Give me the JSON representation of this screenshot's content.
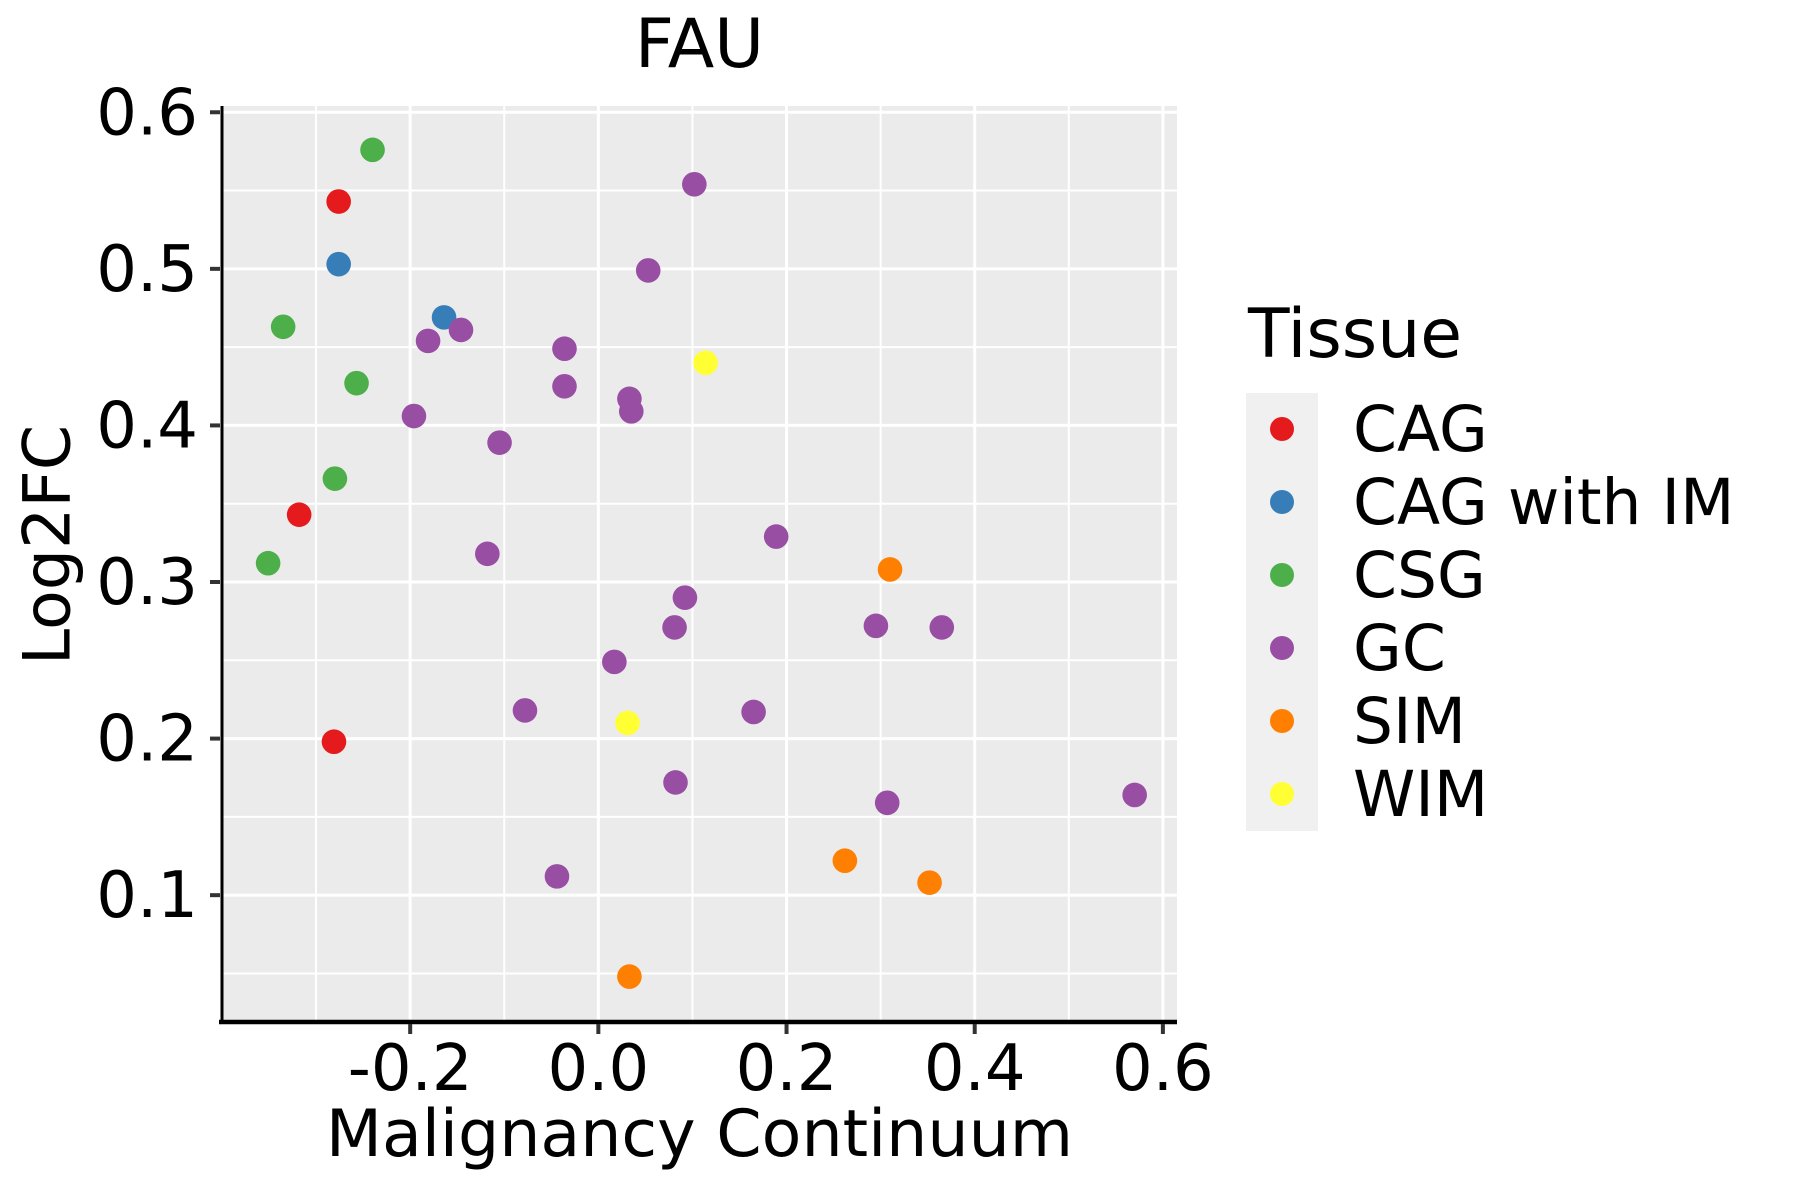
{
  "chart_data": {
    "type": "scatter",
    "title": "FAU",
    "xlabel": "Malignancy Continuum",
    "ylabel": "Log2FC",
    "legend_title": "Tissue",
    "legend_position": "right",
    "grid": "on",
    "xlim": [
      -0.4,
      0.615
    ],
    "ylim": [
      0.019,
      0.604
    ],
    "x_ticks": {
      "values": [
        -0.2,
        0.0,
        0.2,
        0.4,
        0.6
      ],
      "labels": [
        "-0.2",
        "0.0",
        "0.2",
        "0.4",
        "0.6"
      ]
    },
    "y_ticks": {
      "values": [
        0.1,
        0.2,
        0.3,
        0.4,
        0.5,
        0.6
      ],
      "labels": [
        "0.1",
        "0.2",
        "0.3",
        "0.4",
        "0.5",
        "0.6"
      ]
    },
    "x_minor_ticks": [
      -0.3,
      -0.1,
      0.1,
      0.3,
      0.5
    ],
    "y_minor_ticks": [
      0.05,
      0.15,
      0.25,
      0.35,
      0.45,
      0.55
    ],
    "marker": {
      "radius": 12.3
    },
    "style": {
      "panel_background": "#EBEBEB",
      "grid_color": "#FFFFFF",
      "major_grid_width": 3,
      "minor_grid_width": 2,
      "spine_color": "#000000",
      "tick_color": "#333333",
      "text_color": "#000000",
      "legend_key_background": "#F0F0F0"
    },
    "series": [
      {
        "name": "CAG",
        "color": "#E41A1C",
        "points": [
          [
            -0.276,
            0.543
          ],
          [
            -0.318,
            0.343
          ],
          [
            -0.281,
            0.198
          ]
        ]
      },
      {
        "name": "CAG with IM",
        "color": "#377EB8",
        "points": [
          [
            -0.276,
            0.503
          ],
          [
            -0.164,
            0.469
          ]
        ]
      },
      {
        "name": "CSG",
        "color": "#4DAF4A",
        "points": [
          [
            -0.24,
            0.576
          ],
          [
            -0.335,
            0.463
          ],
          [
            -0.257,
            0.427
          ],
          [
            -0.28,
            0.366
          ],
          [
            -0.351,
            0.312
          ]
        ]
      },
      {
        "name": "GC",
        "color": "#984EA3",
        "points": [
          [
            0.102,
            0.554
          ],
          [
            0.053,
            0.499
          ],
          [
            -0.146,
            0.461
          ],
          [
            -0.181,
            0.454
          ],
          [
            -0.036,
            0.449
          ],
          [
            -0.036,
            0.425
          ],
          [
            0.033,
            0.417
          ],
          [
            0.035,
            0.409
          ],
          [
            -0.196,
            0.406
          ],
          [
            -0.105,
            0.389
          ],
          [
            0.189,
            0.329
          ],
          [
            -0.118,
            0.318
          ],
          [
            0.092,
            0.29
          ],
          [
            0.081,
            0.271
          ],
          [
            0.295,
            0.272
          ],
          [
            0.365,
            0.271
          ],
          [
            0.017,
            0.249
          ],
          [
            -0.078,
            0.218
          ],
          [
            0.165,
            0.217
          ],
          [
            0.082,
            0.172
          ],
          [
            0.307,
            0.159
          ],
          [
            0.57,
            0.164
          ],
          [
            -0.044,
            0.112
          ]
        ]
      },
      {
        "name": "SIM",
        "color": "#FF7F00",
        "points": [
          [
            0.31,
            0.308
          ],
          [
            0.262,
            0.122
          ],
          [
            0.352,
            0.108
          ],
          [
            0.033,
            0.048
          ]
        ]
      },
      {
        "name": "WIM",
        "color": "#FFFF33",
        "points": [
          [
            0.114,
            0.44
          ],
          [
            0.031,
            0.21
          ]
        ]
      }
    ]
  }
}
